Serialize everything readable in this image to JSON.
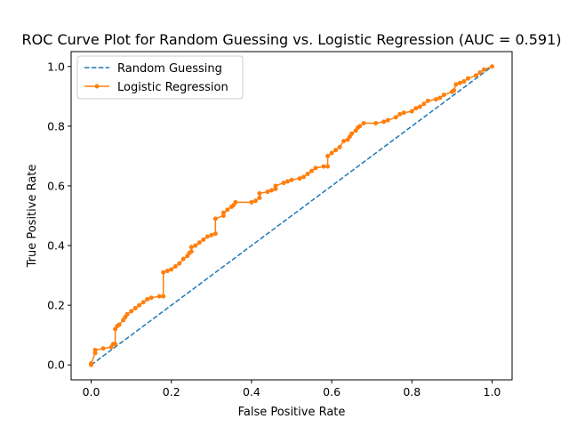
{
  "chart_data": {
    "type": "line",
    "title": "ROC Curve Plot for Random Guessing vs. Logistic Regression (AUC = 0.591)",
    "xlabel": "False Positive Rate",
    "ylabel": "True Positive Rate",
    "xlim": [
      -0.05,
      1.05
    ],
    "ylim": [
      -0.05,
      1.05
    ],
    "x_ticks": [
      "0.0",
      "0.2",
      "0.4",
      "0.6",
      "0.8",
      "1.0"
    ],
    "y_ticks": [
      "0.0",
      "0.2",
      "0.4",
      "0.6",
      "0.8",
      "1.0"
    ],
    "grid": false,
    "legend_position": "upper-left",
    "series": [
      {
        "name": "Random Guessing",
        "color": "#1f77b4",
        "style": "dashed",
        "markers": false,
        "x": [
          0.0,
          1.0
        ],
        "y": [
          0.0,
          1.0
        ]
      },
      {
        "name": "Logistic Regression",
        "color": "#ff7f0e",
        "style": "solid",
        "markers": true,
        "x": [
          0.0,
          0.0,
          0.01,
          0.01,
          0.03,
          0.05,
          0.055,
          0.06,
          0.06,
          0.065,
          0.07,
          0.08,
          0.085,
          0.09,
          0.1,
          0.11,
          0.12,
          0.13,
          0.14,
          0.15,
          0.17,
          0.18,
          0.18,
          0.19,
          0.2,
          0.21,
          0.22,
          0.23,
          0.24,
          0.245,
          0.25,
          0.25,
          0.26,
          0.27,
          0.28,
          0.29,
          0.3,
          0.31,
          0.31,
          0.33,
          0.33,
          0.34,
          0.35,
          0.355,
          0.36,
          0.4,
          0.41,
          0.42,
          0.42,
          0.44,
          0.45,
          0.46,
          0.46,
          0.48,
          0.49,
          0.5,
          0.52,
          0.53,
          0.54,
          0.55,
          0.56,
          0.58,
          0.59,
          0.59,
          0.6,
          0.61,
          0.62,
          0.63,
          0.64,
          0.645,
          0.65,
          0.66,
          0.665,
          0.67,
          0.68,
          0.71,
          0.73,
          0.74,
          0.76,
          0.77,
          0.78,
          0.8,
          0.81,
          0.82,
          0.83,
          0.84,
          0.86,
          0.87,
          0.88,
          0.9,
          0.905,
          0.91,
          0.92,
          0.93,
          0.94,
          0.96,
          0.97,
          0.98,
          1.0
        ],
        "y": [
          0.0,
          0.005,
          0.04,
          0.05,
          0.055,
          0.06,
          0.07,
          0.07,
          0.12,
          0.13,
          0.135,
          0.15,
          0.16,
          0.17,
          0.18,
          0.19,
          0.2,
          0.21,
          0.22,
          0.225,
          0.23,
          0.23,
          0.31,
          0.315,
          0.32,
          0.33,
          0.34,
          0.355,
          0.365,
          0.375,
          0.38,
          0.395,
          0.4,
          0.41,
          0.42,
          0.43,
          0.435,
          0.44,
          0.49,
          0.5,
          0.51,
          0.52,
          0.53,
          0.535,
          0.545,
          0.545,
          0.55,
          0.56,
          0.575,
          0.58,
          0.585,
          0.59,
          0.6,
          0.61,
          0.615,
          0.62,
          0.625,
          0.63,
          0.64,
          0.65,
          0.66,
          0.665,
          0.665,
          0.7,
          0.71,
          0.72,
          0.73,
          0.75,
          0.755,
          0.765,
          0.775,
          0.785,
          0.795,
          0.8,
          0.81,
          0.81,
          0.815,
          0.82,
          0.83,
          0.84,
          0.845,
          0.85,
          0.86,
          0.865,
          0.875,
          0.885,
          0.89,
          0.895,
          0.905,
          0.915,
          0.92,
          0.94,
          0.945,
          0.95,
          0.96,
          0.97,
          0.98,
          0.99,
          1.0
        ]
      }
    ]
  }
}
